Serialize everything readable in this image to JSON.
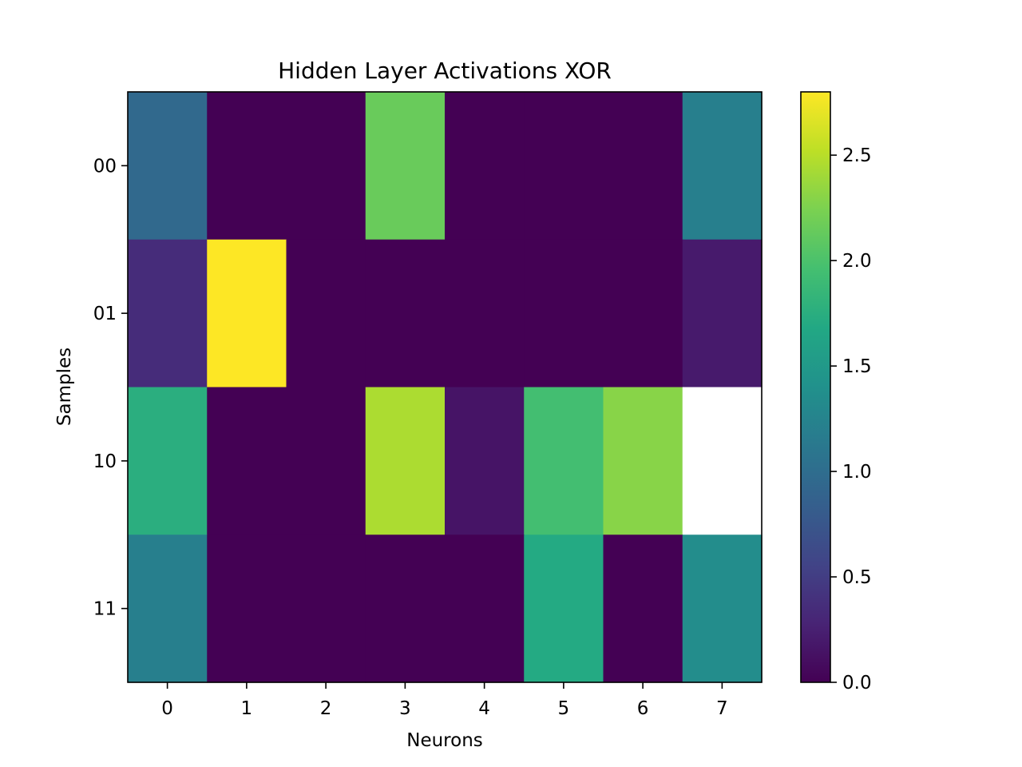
{
  "chart_data": {
    "type": "heatmap",
    "title": "Hidden Layer Activations XOR",
    "xlabel": "Neurons",
    "ylabel": "Samples",
    "x_categories": [
      "0",
      "1",
      "2",
      "3",
      "4",
      "5",
      "6",
      "7"
    ],
    "y_categories": [
      "00",
      "01",
      "10",
      "11"
    ],
    "values": [
      [
        0.95,
        0.0,
        0.0,
        2.15,
        0.0,
        0.0,
        0.0,
        1.2
      ],
      [
        0.35,
        2.8,
        0.0,
        0.0,
        0.0,
        0.0,
        0.0,
        0.2
      ],
      [
        1.75,
        0.0,
        0.0,
        2.45,
        0.15,
        1.95,
        2.3,
        null
      ],
      [
        1.2,
        0.0,
        0.0,
        0.0,
        0.0,
        1.7,
        0.0,
        1.35
      ]
    ],
    "colorbar": {
      "colormap": "viridis",
      "range": [
        0.0,
        2.8
      ],
      "ticks": [
        "0.0",
        "0.5",
        "1.0",
        "1.5",
        "2.0",
        "2.5"
      ],
      "tick_values": [
        0.0,
        0.5,
        1.0,
        1.5,
        2.0,
        2.5
      ]
    }
  }
}
